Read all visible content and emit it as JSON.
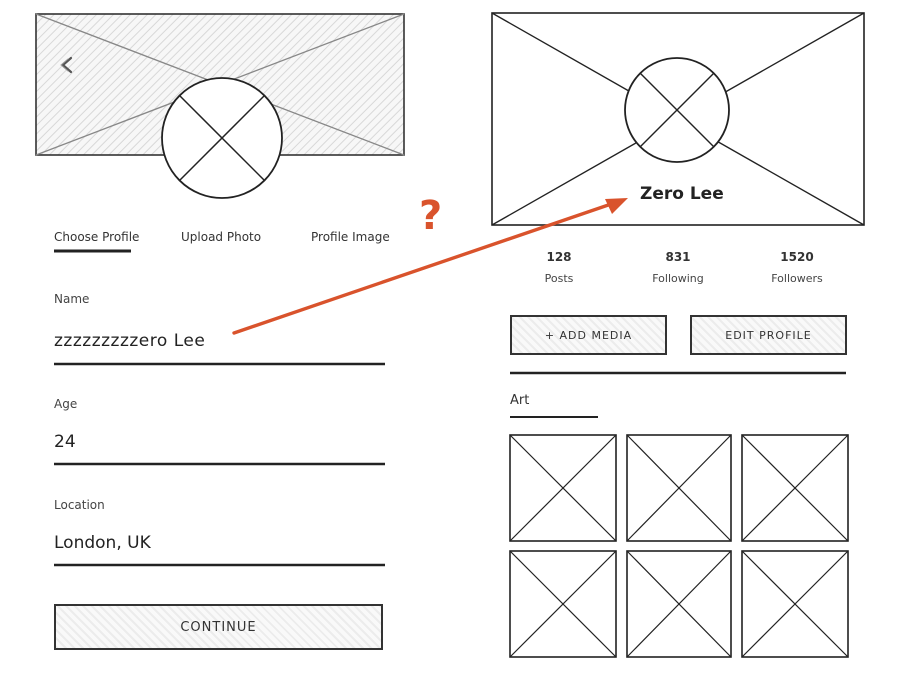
{
  "left_screen": {
    "tabs": [
      "Choose Profile",
      "Upload Photo",
      "Profile Image"
    ],
    "fields": {
      "name": {
        "label": "Name",
        "value": "zzzzzzzzzero Lee"
      },
      "age": {
        "label": "Age",
        "value": "24"
      },
      "location": {
        "label": "Location",
        "value": "London, UK"
      }
    },
    "continue_label": "CONTINUE"
  },
  "right_screen": {
    "profile_name": "Zero Lee",
    "stats": [
      {
        "value": "128",
        "label": "Posts"
      },
      {
        "value": "831",
        "label": "Following"
      },
      {
        "value": "1520",
        "label": "Followers"
      }
    ],
    "add_media_label": "+ ADD MEDIA",
    "edit_profile_label": "EDIT PROFILE",
    "section_title": "Art"
  },
  "annotation": {
    "question_mark": "?"
  },
  "colors": {
    "annotation": "#d9532c",
    "stroke": "#222222"
  }
}
